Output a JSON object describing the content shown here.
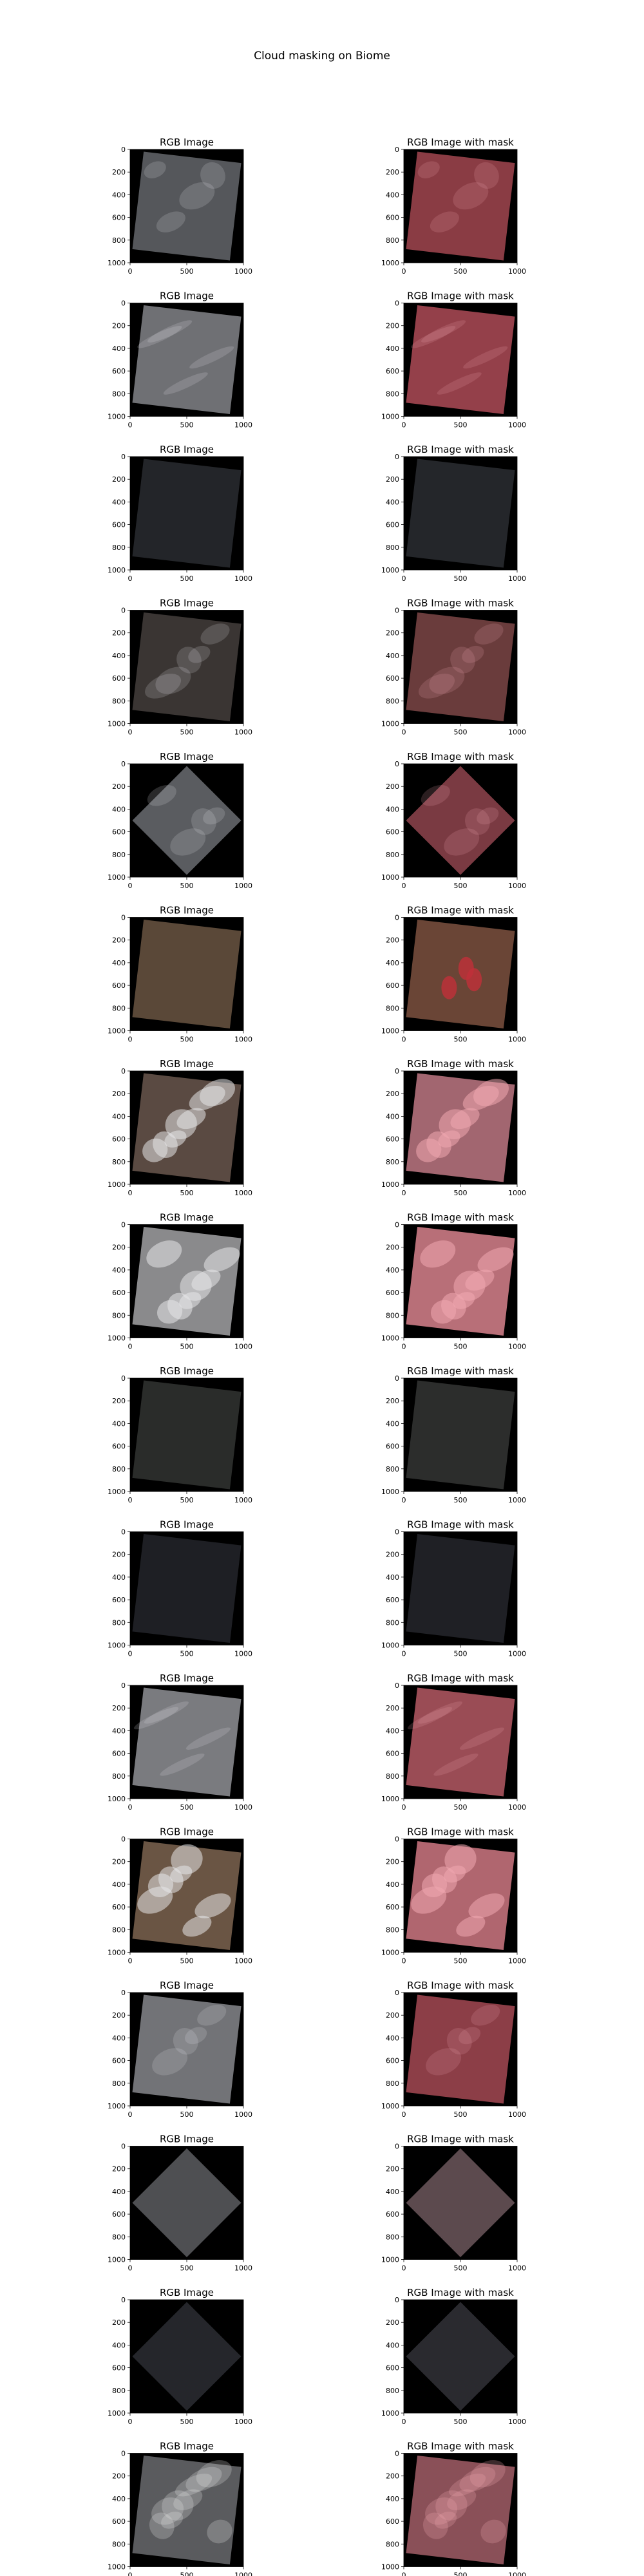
{
  "figure": {
    "suptitle": "Cloud masking on Biome"
  },
  "panel_titles": {
    "left": "RGB Image",
    "right": "RGB Image with mask"
  },
  "colors": {
    "background": "#ffffff",
    "axes_bg": "#000000",
    "mask_tint": "#c0303a"
  },
  "chart_data": {
    "type": "image-grid",
    "rows": 16,
    "columns": 2,
    "x_ticks": [
      0,
      500,
      1000
    ],
    "y_ticks": [
      0,
      200,
      400,
      600,
      800,
      1000
    ],
    "xlim": [
      0,
      1000
    ],
    "ylim": [
      1000,
      0
    ],
    "scenes": [
      {
        "base": "#55575b",
        "shape": "tilt",
        "mask": "#8a3c44",
        "mask_cover": "most",
        "clouds": "light"
      },
      {
        "base": "#6f7074",
        "shape": "tilt",
        "mask": "#94404a",
        "mask_cover": "most",
        "clouds": "streaks"
      },
      {
        "base": "#232529",
        "shape": "tilt",
        "mask": "#24262a",
        "mask_cover": "none",
        "clouds": "none"
      },
      {
        "base": "#3a3533",
        "shape": "tilt",
        "mask": "#6a3c3c",
        "mask_cover": "partial",
        "clouds": "patchy"
      },
      {
        "base": "#5a5c60",
        "shape": "diamond",
        "mask": "#7a3a42",
        "mask_cover": "most",
        "clouds": "light"
      },
      {
        "base": "#5a4838",
        "shape": "tilt",
        "mask": "#6a4536",
        "mask_cover": "spots",
        "clouds": "none"
      },
      {
        "base": "#5a4a42",
        "shape": "tilt",
        "mask": "#a26670",
        "mask_cover": "partial",
        "clouds": "heavy"
      },
      {
        "base": "#8a8a8c",
        "shape": "tilt",
        "mask": "#b86f78",
        "mask_cover": "most",
        "clouds": "heavy"
      },
      {
        "base": "#2a2c2a",
        "shape": "tilt",
        "mask": "#2c2d2c",
        "mask_cover": "none",
        "clouds": "none"
      },
      {
        "base": "#1e1f24",
        "shape": "tilt",
        "mask": "#1f2025",
        "mask_cover": "none",
        "clouds": "none"
      },
      {
        "base": "#7a7b7f",
        "shape": "tilt",
        "mask": "#9a4c55",
        "mask_cover": "most",
        "clouds": "streaks"
      },
      {
        "base": "#6a5544",
        "shape": "tilt",
        "mask": "#b0666f",
        "mask_cover": "partial",
        "clouds": "heavy"
      },
      {
        "base": "#727377",
        "shape": "tilt",
        "mask": "#8c3e47",
        "mask_cover": "most",
        "clouds": "light"
      },
      {
        "base": "#4e4f52",
        "shape": "diamond",
        "mask": "#5c4a4e",
        "mask_cover": "partial",
        "clouds": "none"
      },
      {
        "base": "#25262b",
        "shape": "diamond",
        "mask": "#2a2a2f",
        "mask_cover": "none",
        "clouds": "none"
      },
      {
        "base": "#5a5b5e",
        "shape": "tilt",
        "mask": "#8a5058",
        "mask_cover": "partial",
        "clouds": "texture"
      }
    ]
  }
}
